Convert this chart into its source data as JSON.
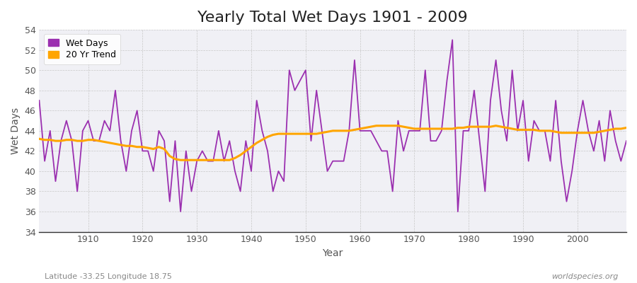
{
  "title": "Yearly Total Wet Days 1901 - 2009",
  "xlabel": "Year",
  "ylabel": "Wet Days",
  "subtitle_left": "Latitude -33.25 Longitude 18.75",
  "subtitle_right": "worldspecies.org",
  "xlim": [
    1901,
    2009
  ],
  "ylim": [
    34,
    54
  ],
  "yticks": [
    34,
    36,
    38,
    40,
    42,
    44,
    46,
    48,
    50,
    52,
    54
  ],
  "xticks": [
    1910,
    1920,
    1930,
    1940,
    1950,
    1960,
    1970,
    1980,
    1990,
    2000
  ],
  "wet_days_color": "#9B30B0",
  "trend_color": "#FFA500",
  "plot_bg_color": "#F0F0F5",
  "fig_bg_color": "#FFFFFF",
  "wet_days": {
    "1901": 47,
    "1902": 41,
    "1903": 44,
    "1904": 39,
    "1905": 43,
    "1906": 45,
    "1907": 43,
    "1908": 38,
    "1909": 44,
    "1910": 45,
    "1911": 43,
    "1912": 43,
    "1913": 45,
    "1914": 44,
    "1915": 48,
    "1916": 43,
    "1917": 40,
    "1918": 44,
    "1919": 46,
    "1920": 42,
    "1921": 42,
    "1922": 40,
    "1923": 44,
    "1924": 43,
    "1925": 37,
    "1926": 43,
    "1927": 36,
    "1928": 42,
    "1929": 38,
    "1930": 41,
    "1931": 42,
    "1932": 41,
    "1933": 41,
    "1934": 44,
    "1935": 41,
    "1936": 43,
    "1937": 40,
    "1938": 38,
    "1939": 43,
    "1940": 40,
    "1941": 47,
    "1942": 44,
    "1943": 42,
    "1944": 38,
    "1945": 40,
    "1946": 39,
    "1947": 50,
    "1948": 48,
    "1949": 49,
    "1950": 50,
    "1951": 43,
    "1952": 48,
    "1953": 44,
    "1954": 40,
    "1955": 41,
    "1956": 41,
    "1957": 41,
    "1958": 44,
    "1959": 51,
    "1960": 44,
    "1961": 44,
    "1962": 44,
    "1963": 43,
    "1964": 42,
    "1965": 42,
    "1966": 38,
    "1967": 45,
    "1968": 42,
    "1969": 44,
    "1970": 44,
    "1971": 44,
    "1972": 50,
    "1973": 43,
    "1974": 43,
    "1975": 44,
    "1976": 49,
    "1977": 53,
    "1978": 36,
    "1979": 44,
    "1980": 44,
    "1981": 48,
    "1982": 43,
    "1983": 38,
    "1984": 47,
    "1985": 51,
    "1986": 46,
    "1987": 43,
    "1988": 50,
    "1989": 44,
    "1990": 47,
    "1991": 41,
    "1992": 45,
    "1993": 44,
    "1994": 44,
    "1995": 41,
    "1996": 47,
    "1997": 41,
    "1998": 37,
    "1999": 40,
    "2000": 44,
    "2001": 47,
    "2002": 44,
    "2003": 42,
    "2004": 45,
    "2005": 41,
    "2006": 46,
    "2007": 43,
    "2008": 41,
    "2009": 43
  },
  "trend": {
    "1901": 43.2,
    "1902": 43.1,
    "1903": 43.1,
    "1904": 43.0,
    "1905": 43.0,
    "1906": 43.1,
    "1907": 43.1,
    "1908": 43.0,
    "1909": 43.0,
    "1910": 43.1,
    "1911": 43.1,
    "1912": 43.0,
    "1913": 42.9,
    "1914": 42.8,
    "1915": 42.7,
    "1916": 42.6,
    "1917": 42.5,
    "1918": 42.5,
    "1919": 42.4,
    "1920": 42.4,
    "1921": 42.3,
    "1922": 42.2,
    "1923": 42.4,
    "1924": 42.2,
    "1925": 41.5,
    "1926": 41.2,
    "1927": 41.1,
    "1928": 41.1,
    "1929": 41.1,
    "1930": 41.1,
    "1931": 41.1,
    "1932": 41.1,
    "1933": 41.1,
    "1934": 41.1,
    "1935": 41.1,
    "1936": 41.1,
    "1937": 41.3,
    "1938": 41.6,
    "1939": 42.0,
    "1940": 42.4,
    "1941": 42.8,
    "1942": 43.1,
    "1943": 43.4,
    "1944": 43.6,
    "1945": 43.7,
    "1946": 43.7,
    "1947": 43.7,
    "1948": 43.7,
    "1949": 43.7,
    "1950": 43.7,
    "1951": 43.7,
    "1952": 43.7,
    "1953": 43.8,
    "1954": 43.9,
    "1955": 44.0,
    "1956": 44.0,
    "1957": 44.0,
    "1958": 44.0,
    "1959": 44.1,
    "1960": 44.2,
    "1961": 44.3,
    "1962": 44.4,
    "1963": 44.5,
    "1964": 44.5,
    "1965": 44.5,
    "1966": 44.5,
    "1967": 44.5,
    "1968": 44.4,
    "1969": 44.3,
    "1970": 44.2,
    "1971": 44.2,
    "1972": 44.2,
    "1973": 44.2,
    "1974": 44.2,
    "1975": 44.2,
    "1976": 44.2,
    "1977": 44.2,
    "1978": 44.3,
    "1979": 44.3,
    "1980": 44.4,
    "1981": 44.4,
    "1982": 44.4,
    "1983": 44.4,
    "1984": 44.4,
    "1985": 44.5,
    "1986": 44.4,
    "1987": 44.3,
    "1988": 44.2,
    "1989": 44.1,
    "1990": 44.1,
    "1991": 44.1,
    "1992": 44.1,
    "1993": 44.0,
    "1994": 44.0,
    "1995": 44.0,
    "1996": 43.9,
    "1997": 43.8,
    "1998": 43.8,
    "1999": 43.8,
    "2000": 43.8,
    "2001": 43.8,
    "2002": 43.8,
    "2003": 43.8,
    "2004": 43.9,
    "2005": 44.0,
    "2006": 44.1,
    "2007": 44.2,
    "2008": 44.2,
    "2009": 44.3
  },
  "title_fontsize": 16,
  "axis_fontsize": 10,
  "tick_fontsize": 9,
  "legend_fontsize": 9
}
